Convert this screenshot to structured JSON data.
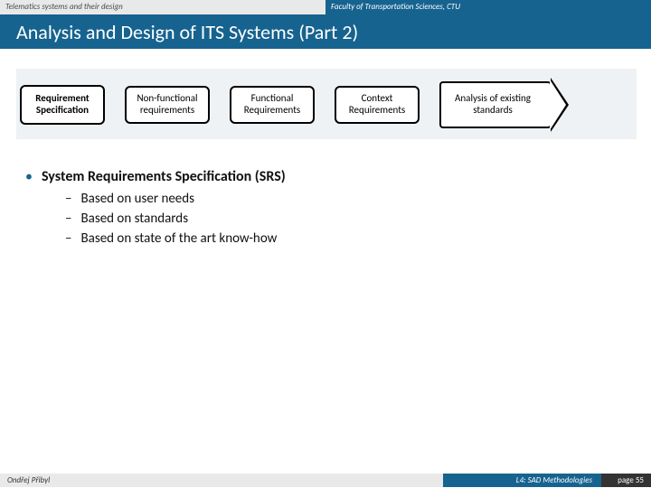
{
  "header": {
    "left": "Telematics systems and their design",
    "right": "Faculty of Transportation Sciences, CTU"
  },
  "title": "Analysis and Design of ITS Systems (Part 2)",
  "diagram": {
    "spec": "Requirement Specification",
    "boxes": [
      "Non-functional requirements",
      "Functional Requirements",
      "Context Requirements"
    ],
    "arrow": "Analysis of existing standards"
  },
  "content": {
    "heading": "System Requirements Specification (SRS)",
    "items": [
      "Based on user needs",
      "Based on standards",
      "Based on state of the art know-how"
    ]
  },
  "footer": {
    "author": "Ondřej Přibyl",
    "lecture": "L4: SAD Methodologies",
    "page_label": "page",
    "page_num": "55"
  }
}
